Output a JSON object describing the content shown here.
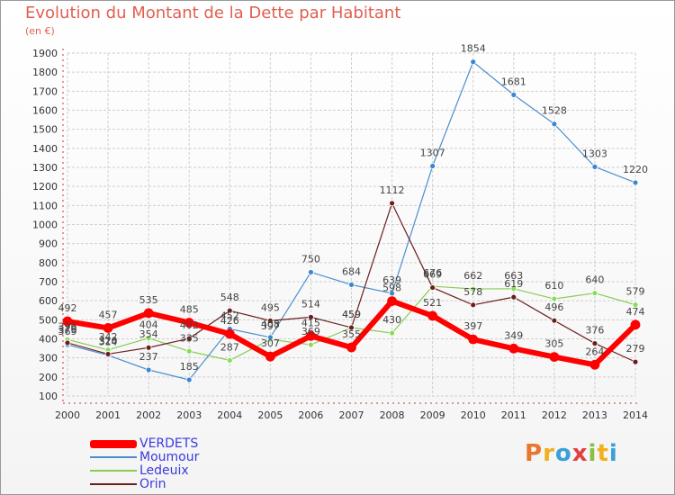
{
  "title": "Evolution du Montant de la Dette par Habitant",
  "subtitle": "(en €)",
  "logo_text": "Proxiti",
  "colors": {
    "title": "#e06050",
    "axis": "#cc3333",
    "grid": "#cfcfcf",
    "legend_text": "#3a3ae0"
  },
  "chart_data": {
    "type": "line",
    "title": "Evolution du Montant de la Dette par Habitant",
    "subtitle": "(en €)",
    "x": [
      2000,
      2001,
      2002,
      2003,
      2004,
      2005,
      2006,
      2007,
      2008,
      2009,
      2010,
      2011,
      2012,
      2013,
      2014
    ],
    "ylim": [
      100,
      1900
    ],
    "yticks": [
      100,
      200,
      300,
      400,
      500,
      600,
      700,
      800,
      900,
      1000,
      1100,
      1200,
      1300,
      1400,
      1500,
      1600,
      1700,
      1800,
      1900
    ],
    "grid": true,
    "legend_position": "bottom-left",
    "series": [
      {
        "name": "Ledeuix",
        "color": "#88cc55",
        "dot": "#88dd55",
        "width": 1.2,
        "values": [
          396,
          342,
          404,
          335,
          287,
          397,
          369,
          459,
          430,
          676,
          662,
          663,
          610,
          640,
          579
        ]
      },
      {
        "name": "Moumour",
        "color": "#4d8fcc",
        "dot": "#3b86d0",
        "width": 1.2,
        "values": [
          369,
          314,
          237,
          185,
          452,
          408,
          750,
          684,
          639,
          1307,
          1854,
          1681,
          1528,
          1303,
          1220
        ]
      },
      {
        "name": "Orin",
        "color": "#6b1e1e",
        "dot": "#6b1e1e",
        "width": 1.2,
        "values": [
          379,
          320,
          354,
          402,
          548,
          495,
          514,
          459,
          1112,
          669,
          578,
          619,
          496,
          376,
          279
        ]
      },
      {
        "name": "VERDETS",
        "color": "#ff0000",
        "dot": "#ff0000",
        "width": 6,
        "values": [
          492,
          457,
          535,
          485,
          426,
          307,
          415,
          355,
          598,
          521,
          397,
          349,
          305,
          264,
          474
        ]
      }
    ],
    "data_labels": [
      {
        "series": "VERDETS",
        "labels": [
          "492",
          "457",
          "535",
          "485",
          "426",
          "307",
          "415",
          "355",
          "598",
          "521",
          "397",
          "349",
          "305",
          "264",
          "474"
        ]
      },
      {
        "series": "Moumour",
        "labels": [
          "369",
          "314",
          "237",
          "185",
          "452",
          "408",
          "750",
          "684",
          "639",
          "1307",
          "1854",
          "1681",
          "1528",
          "1303",
          "1220"
        ]
      },
      {
        "series": "Ledeuix",
        "labels": [
          "396",
          "342",
          "404",
          "335",
          "287",
          "397",
          "369",
          "459",
          "430",
          "676",
          "662",
          "663",
          "610",
          "640",
          "579"
        ]
      },
      {
        "series": "Orin",
        "labels": [
          "379",
          "320",
          "354",
          "402",
          "548",
          "495",
          "514",
          "459",
          "1112",
          "669",
          "578",
          "619",
          "496",
          "376",
          "279"
        ]
      }
    ]
  },
  "legend": [
    {
      "name": "VERDETS",
      "color": "#ff0000",
      "thickness": 9
    },
    {
      "name": "Moumour",
      "color": "#4d8fcc",
      "thickness": 2
    },
    {
      "name": "Ledeuix",
      "color": "#88cc55",
      "thickness": 2
    },
    {
      "name": "Orin",
      "color": "#6b1e1e",
      "thickness": 2
    }
  ]
}
